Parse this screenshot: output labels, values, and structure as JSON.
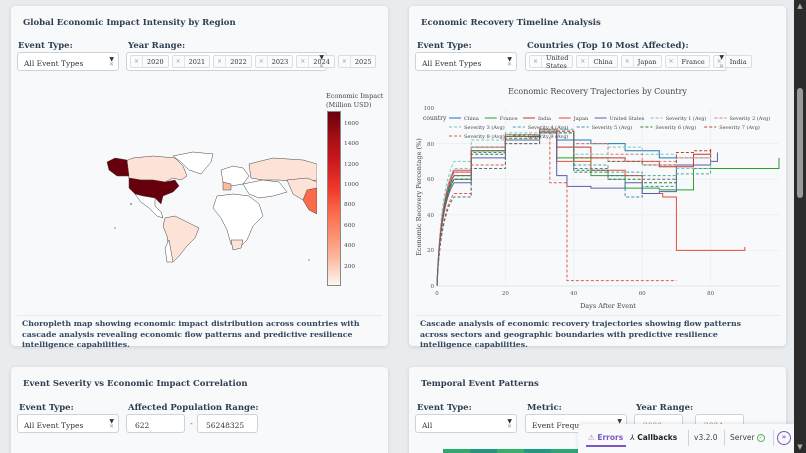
{
  "cards": {
    "map": {
      "title": "Global Economic Impact Intensity by Region",
      "event_type_label": "Event Type:",
      "event_type_value": "All Event Types",
      "year_range_label": "Year Range:",
      "years": [
        "2020",
        "2021",
        "2022",
        "2023",
        "2024",
        "2025"
      ],
      "colorbar_title_1": "Economic Impact",
      "colorbar_title_2": "(Million USD)",
      "colorbar_ticks": [
        "1600",
        "1400",
        "1200",
        "1000",
        "800",
        "600",
        "400",
        "200"
      ],
      "description": "Choropleth map showing economic impact distribution across countries with cascade analysis revealing economic flow patterns and predictive resilience intelligence capabilities."
    },
    "recovery": {
      "title": "Economic Recovery Timeline Analysis",
      "event_type_label": "Event Type:",
      "event_type_value": "All Event Types",
      "countries_label": "Countries (Top 10 Most Affected):",
      "countries": [
        "United States",
        "China",
        "Japan",
        "France",
        "India"
      ],
      "chart_title": "Economic Recovery Trajectories by Country",
      "legend_title": "country",
      "xlabel": "Days After Event",
      "ylabel": "Economic Recovery Percentage (%)",
      "description": "Cascade analysis of economic recovery trajectories showing flow patterns across sectors and geographic boundaries with predictive resilience intelligence capabilities."
    },
    "severity": {
      "title": "Event Severity vs Economic Impact Correlation",
      "event_type_label": "Event Type:",
      "event_type_value": "All Event Types",
      "population_label": "Affected Population Range:",
      "population_min": "622",
      "population_max": "56248325",
      "dash": "-"
    },
    "temporal": {
      "title": "Temporal Event Patterns",
      "event_type_label": "Event Type:",
      "event_type_value": "All",
      "metric_label": "Metric:",
      "metric_value": "Event Frequency",
      "year_range_label": "Year Range:",
      "year_start": "2020",
      "year_end": "2024"
    }
  },
  "devtools": {
    "errors_label": "Errors",
    "callbacks_label": "Callbacks",
    "version": "v3.2.0",
    "server_label": "Server"
  },
  "chart_data": [
    {
      "type": "choropleth",
      "title": "Global Economic Impact Intensity by Region",
      "colorbar": {
        "title": "Economic Impact (Million USD)",
        "range": [
          0,
          1700
        ],
        "ticks": [
          200,
          400,
          600,
          800,
          1000,
          1200,
          1400,
          1600
        ],
        "colorscale": "Reds"
      },
      "regions": [
        {
          "name": "United States",
          "value": 1700
        },
        {
          "name": "India",
          "value": 650
        },
        {
          "name": "France",
          "value": 300
        },
        {
          "name": "Canada",
          "value": 100
        },
        {
          "name": "Russia",
          "value": 100
        },
        {
          "name": "Brazil",
          "value": 100
        },
        {
          "name": "China",
          "value": 200
        },
        {
          "name": "South Africa",
          "value": 100
        }
      ]
    },
    {
      "type": "line",
      "title": "Economic Recovery Trajectories by Country",
      "xlabel": "Days After Event",
      "ylabel": "Economic Recovery Percentage (%)",
      "xlim": [
        0,
        100
      ],
      "ylim": [
        0,
        100
      ],
      "x_ticks": [
        0,
        20,
        40,
        60,
        80
      ],
      "y_ticks": [
        0,
        20,
        40,
        60,
        80,
        100
      ],
      "legend_title": "country",
      "series": [
        {
          "name": "China",
          "color": "#1f77b4",
          "dash": "solid",
          "x": [
            0,
            5,
            10,
            20,
            30,
            35,
            45,
            55,
            65,
            70
          ],
          "y": [
            0,
            62,
            76,
            84,
            88,
            82,
            80,
            76,
            72,
            72
          ]
        },
        {
          "name": "France",
          "color": "#2ca02c",
          "dash": "solid",
          "x": [
            0,
            5,
            10,
            20,
            30,
            35,
            45,
            55,
            65,
            75,
            100
          ],
          "y": [
            0,
            60,
            76,
            84,
            87,
            72,
            62,
            55,
            54,
            66,
            72
          ]
        },
        {
          "name": "India",
          "color": "#c0392b",
          "dash": "solid",
          "x": [
            0,
            5,
            10,
            20,
            30,
            35,
            45,
            55,
            65,
            75,
            80
          ],
          "y": [
            0,
            64,
            78,
            85,
            88,
            78,
            72,
            70,
            67,
            74,
            77
          ]
        },
        {
          "name": "Japan",
          "color": "#e74c3c",
          "dash": "solid",
          "x": [
            0,
            5,
            10,
            20,
            30,
            35,
            45,
            55,
            60,
            66,
            70,
            90
          ],
          "y": [
            0,
            65,
            78,
            85,
            88,
            70,
            65,
            62,
            52,
            50,
            20,
            22
          ]
        },
        {
          "name": "United States",
          "color": "#5b5ea6",
          "dash": "solid",
          "x": [
            0,
            5,
            10,
            20,
            30,
            35,
            38,
            45,
            55,
            60,
            65,
            70,
            80,
            82
          ],
          "y": [
            0,
            58,
            72,
            82,
            86,
            62,
            56,
            55,
            58,
            52,
            53,
            68,
            70,
            75
          ]
        },
        {
          "name": "Severity 1 (Avg)",
          "color": "#76c7c0",
          "dash": "dash",
          "x": [
            0,
            5,
            10,
            20,
            30,
            40,
            50,
            60,
            70,
            80
          ],
          "y": [
            0,
            70,
            82,
            86,
            88,
            80,
            78,
            74,
            72,
            75
          ]
        },
        {
          "name": "Severity 2 (Avg)",
          "color": "#e57373",
          "dash": "dash",
          "x": [
            0,
            5,
            10,
            20,
            30,
            40,
            50,
            60,
            70,
            80
          ],
          "y": [
            0,
            64,
            78,
            85,
            88,
            80,
            74,
            70,
            72,
            74
          ]
        },
        {
          "name": "Severity 3 (Avg)",
          "color": "#76c7c0",
          "dash": "dash",
          "x": [
            0,
            5,
            10,
            20,
            30,
            40,
            50,
            60,
            70,
            80
          ],
          "y": [
            0,
            66,
            78,
            85,
            88,
            74,
            70,
            68,
            66,
            70
          ]
        },
        {
          "name": "Severity 4 (Avg)",
          "color": "#4fa3a0",
          "dash": "dash",
          "x": [
            0,
            5,
            10,
            20,
            30,
            40,
            50,
            60,
            70,
            80
          ],
          "y": [
            0,
            62,
            76,
            84,
            87,
            68,
            64,
            62,
            63,
            66
          ]
        },
        {
          "name": "Severity 5 (Avg)",
          "color": "#3b8ea5",
          "dash": "dash",
          "x": [
            0,
            5,
            10,
            20,
            30,
            40,
            50,
            55,
            60,
            70
          ],
          "y": [
            0,
            60,
            75,
            84,
            87,
            66,
            60,
            50,
            56,
            60
          ]
        },
        {
          "name": "Severity 6 (Avg)",
          "color": "#2e7d32",
          "dash": "dash",
          "x": [
            0,
            5,
            10,
            20,
            30,
            40,
            50,
            60,
            70
          ],
          "y": [
            0,
            60,
            74,
            83,
            86,
            65,
            60,
            58,
            62
          ]
        },
        {
          "name": "Severity 7 (Avg)",
          "color": "#b7472a",
          "dash": "dash",
          "x": [
            0,
            5,
            10,
            20,
            30,
            40,
            50,
            60,
            70,
            75,
            80
          ],
          "y": [
            0,
            62,
            76,
            84,
            87,
            72,
            70,
            68,
            75,
            76,
            70
          ]
        },
        {
          "name": "Severity 8 (Avg)",
          "color": "#e05a4f",
          "dash": "dash",
          "x": [
            0,
            5,
            10,
            20,
            30,
            33,
            35,
            38,
            40,
            50,
            60,
            70
          ],
          "y": [
            0,
            52,
            68,
            80,
            86,
            58,
            58,
            3,
            3,
            3,
            3,
            3
          ]
        },
        {
          "name": "Severity 9 (Avg)",
          "color": "#546e7a",
          "dash": "dash",
          "x": [
            0,
            5,
            10,
            20,
            30,
            40,
            50,
            60,
            70
          ],
          "y": [
            0,
            50,
            66,
            80,
            86,
            64,
            62,
            60,
            62
          ]
        }
      ]
    }
  ]
}
